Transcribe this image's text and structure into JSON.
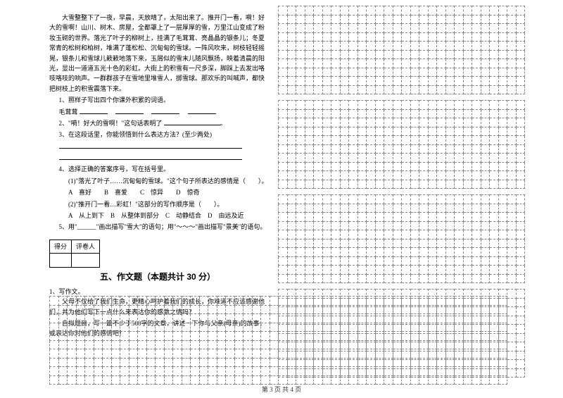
{
  "passage": {
    "p1": "大雪整整下了一夜，早晨，天放晴了，太阳出来了。推开门一看，嗬！好大的雪啊！山川、树木、房屋，全都罩上了一层厚厚的雪，万里江山变成了粉妆玉砌的世界。落光了叶子的柳树上，挂满了毛茸茸、亮晶晶的银条儿；冬夏常青的松树和柏树，堆满了蓬松松、沉甸甸的雪球。一阵风吹来，树枝轻轻摇晃，银条儿和雪球儿簌簌地落下来，玉屑似的雪末儿随风飘扬，映着清晨的阳光，显出一道道五光十色的彩虹。大街上的积雪有一尺多深，脚踩上去发出咯吱咯吱的响声。一群群孩子在雪地里堆雪人，掷雪球。那欢乐的叫喊声，都快把树枝上的积雪震落下来。"
  },
  "questions": {
    "q1_label": "1、照样子写出四个你课外积累的词语。",
    "q1_example": "毛茸茸",
    "q2_label": "2、\"嗬！好大的雪啊！\"这句话表明了",
    "q3_label": "3、在这段话里，你能领悟到什么表达方法？(至少两处)",
    "q4_label": "4、选择正确的答案序号，写在括号里。",
    "q4_1": "(1)\"落光了叶子……沉甸甸的雪球。\"这个句子所表达的感情是（　　）。",
    "q4_1_opts": "A　喜好　　B　喜爱　　C　惊异　　D　惊奇",
    "q4_2": "(2)\"推开门一看…彩虹！\"这部分的写作顺序是（　　）。",
    "q4_2_opts": "A　从上到下　B　从整体到部分　C　动静结合　D　由远及近",
    "q5_label": "5、用\"______\"画出描写\"雪大\"的语句；用\"～～～\"画出描写\"景美\"的语句。"
  },
  "scorebox": {
    "col1": "得分",
    "col2": "评卷人"
  },
  "section5": {
    "title": "五、作文题（本题共计 30 分）",
    "item_num": "1、写作文。",
    "body1": "父母不仅给了我们生命，更精心呵护着我们的成长，你难道不应该感谢他们，并为他们写下一点什么来表达你的感激之情吗？",
    "body2": "自拟题目，写一篇不少于500字的文章，讲述一下你与父亲(母亲)的故事，或表达你对他们的感情吧！"
  },
  "footer": "第 3 页  共 4 页",
  "grid": {
    "right_cols": 28,
    "right_rows_block": 10,
    "right_blocks": 4,
    "bottom_cols": 52,
    "bottom_rows": 10
  },
  "style": {
    "grid_border": "#888888",
    "text_color": "#000000",
    "bg": "#ffffff"
  }
}
